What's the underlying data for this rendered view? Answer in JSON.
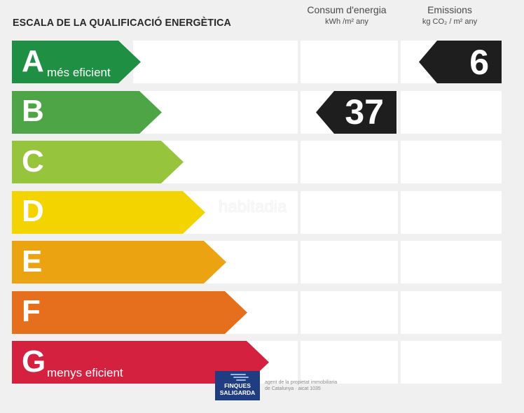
{
  "title": "ESCALA DE LA QUALIFICACIÓ ENERGÈTICA",
  "columns": {
    "energy": {
      "label": "Consum d'energia",
      "unit": "kWh /m² any"
    },
    "emissions": {
      "label": "Emissions",
      "unit": "kg CO₂ / m² any"
    }
  },
  "grades": [
    {
      "letter": "A",
      "sublabel": "més eficient",
      "color": "#1f8f43"
    },
    {
      "letter": "B",
      "sublabel": "",
      "color": "#4ea545"
    },
    {
      "letter": "C",
      "sublabel": "",
      "color": "#96c53d"
    },
    {
      "letter": "D",
      "sublabel": "",
      "color": "#f4d400"
    },
    {
      "letter": "E",
      "sublabel": "",
      "color": "#eca312"
    },
    {
      "letter": "F",
      "sublabel": "",
      "color": "#e56f1d"
    },
    {
      "letter": "G",
      "sublabel": "menys eficient",
      "color": "#d4213f"
    }
  ],
  "ratings": {
    "energy": {
      "value": "37",
      "grade": "B"
    },
    "emissions": {
      "value": "6",
      "grade": "A"
    }
  },
  "watermark": "habitadia",
  "logo": {
    "line1": "FINQUES",
    "line2": "SALIGARDA"
  },
  "agent_text": {
    "line1": "agent de la propietat immobiliaria",
    "line2": "de Catalunya · aicat 1035"
  }
}
